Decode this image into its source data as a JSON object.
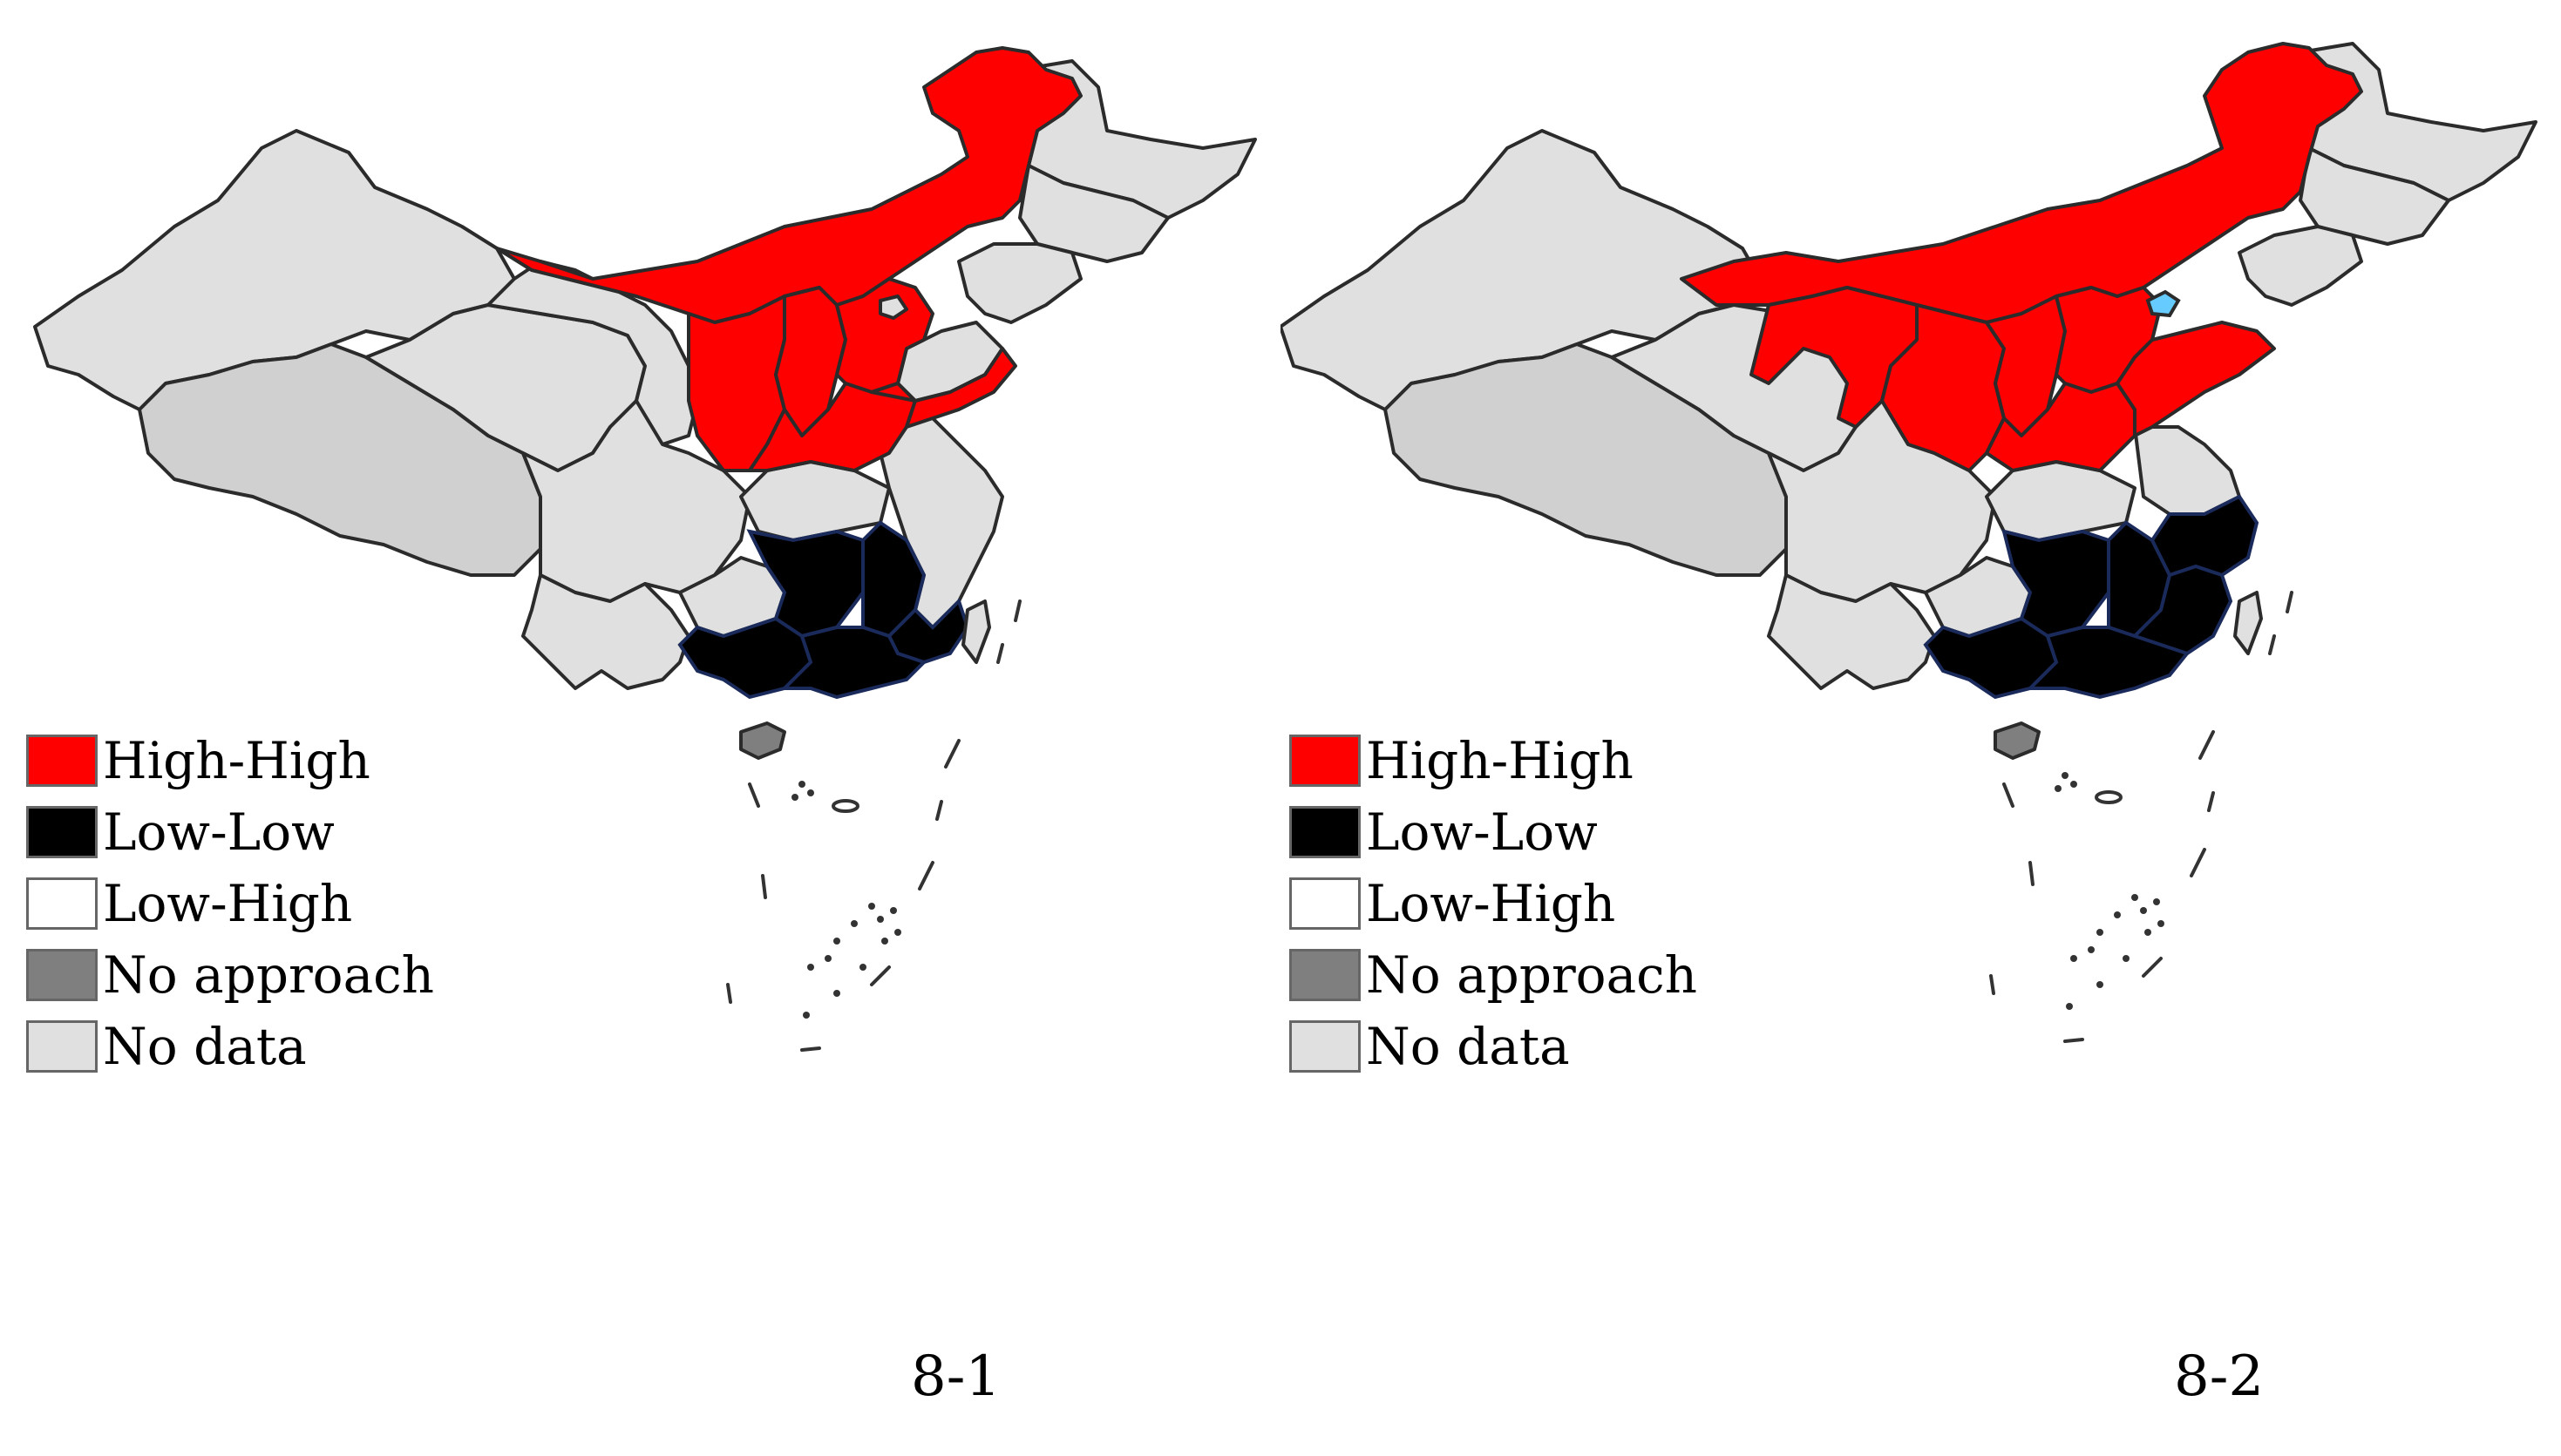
{
  "legend": {
    "items": [
      {
        "label": "High-High",
        "color": "#ff0000"
      },
      {
        "label": "Low-Low",
        "color": "#000000"
      },
      {
        "label": "Low-High",
        "color": "#ffffff"
      },
      {
        "label": "No approach",
        "color": "#7f7f7f"
      },
      {
        "label": "No data",
        "color": "#e0e0e0"
      }
    ]
  },
  "panels": [
    {
      "caption": "8-1",
      "highlights": {
        "high_high": "northern provinces",
        "low_low": "southern provinces",
        "no_approach": "Hainan"
      }
    },
    {
      "caption": "8-2",
      "highlights": {
        "high_high": "northern provinces",
        "low_low": "southern provinces",
        "no_approach": "Hainan"
      }
    }
  ],
  "colors": {
    "high_high": "#ff0000",
    "low_low": "#000000",
    "low_high": "#ffffff",
    "no_approach": "#7f7f7f",
    "no_data": "#e0e0e0",
    "tibet_shade": "#d0d0d0",
    "beijing_outlier": "#66ccff"
  }
}
